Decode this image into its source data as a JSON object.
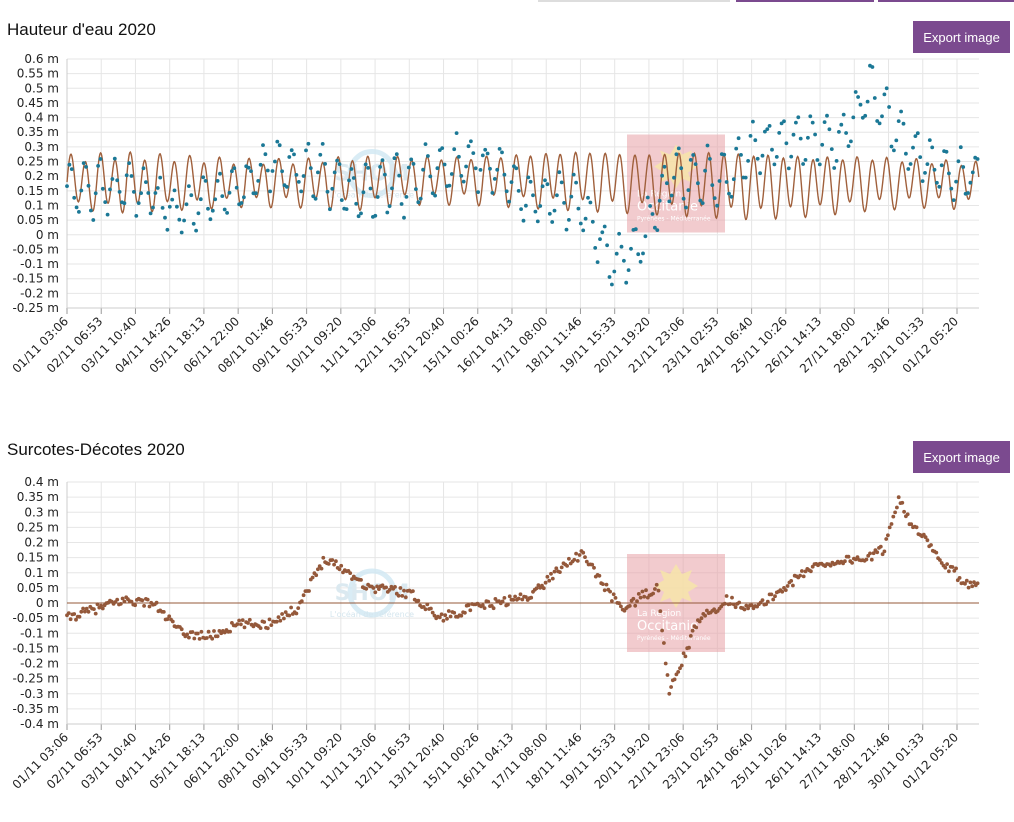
{
  "colors": {
    "accent": "#7b4a8f",
    "observed": "#1b7896",
    "predicted": "#a0603c",
    "surge": "#94583a",
    "grid": "#e6e6e6",
    "watermark_box": "#e8a0a6"
  },
  "charts": [
    {
      "title": "Hauteur d'eau 2020",
      "export_label": "Export image",
      "unit": "m"
    },
    {
      "title": "Surcotes-Décotes 2020",
      "export_label": "Export image",
      "unit": "m"
    }
  ],
  "watermarks": {
    "shom_text": "SHOM",
    "shom_subtitle": "L'océan de référence",
    "region_line1": "La Région",
    "region_line2": "Occitanie",
    "region_line3": "Pyrénées - Méditerranée"
  },
  "chart_data": [
    {
      "type": "line",
      "title": "Hauteur d'eau 2020",
      "xlabel": "",
      "ylabel": "",
      "ylim": [
        -0.25,
        0.6
      ],
      "yticks": [
        "0.6 m",
        "0.55 m",
        "0.5 m",
        "0.45 m",
        "0.4 m",
        "0.35 m",
        "0.3 m",
        "0.25 m",
        "0.2 m",
        "0.15 m",
        "0.1 m",
        "0.05 m",
        "0 m",
        "-0.05 m",
        "-0.1 m",
        "-0.15 m",
        "-0.2 m",
        "-0.25 m"
      ],
      "ytick_values": [
        0.6,
        0.55,
        0.5,
        0.45,
        0.4,
        0.35,
        0.3,
        0.25,
        0.2,
        0.15,
        0.1,
        0.05,
        0,
        -0.05,
        -0.1,
        -0.15,
        -0.2,
        -0.25
      ],
      "xticks": [
        "01/11 03:06",
        "02/11 06:53",
        "03/11 10:40",
        "04/11 14:26",
        "05/11 18:13",
        "06/11 22:00",
        "08/11 01:46",
        "09/11 05:33",
        "10/11 09:20",
        "11/11 13:06",
        "12/11 16:53",
        "13/11 20:40",
        "15/11 00:26",
        "16/11 04:13",
        "17/11 08:00",
        "18/11 11:46",
        "19/11 15:33",
        "20/11 19:20",
        "21/11 23:06",
        "23/11 02:53",
        "24/11 06:40",
        "25/11 10:26",
        "26/11 14:13",
        "27/11 18:00",
        "28/11 21:46",
        "30/11 01:33",
        "01/12 05:20"
      ],
      "x_days": [
        0,
        2,
        4,
        6,
        8,
        10,
        12,
        14,
        16,
        18,
        20,
        22,
        24,
        26,
        28,
        30,
        31
      ],
      "series": [
        {
          "kind": "predicted-line",
          "mean_by_day": [
            0.18,
            0.18,
            0.18,
            0.18,
            0.18,
            0.18,
            0.19,
            0.19,
            0.19,
            0.19,
            0.18,
            0.18,
            0.17,
            0.17,
            0.18,
            0.18,
            0.17,
            0.17
          ],
          "amp_by_day": [
            0.08,
            0.09,
            0.08,
            0.07,
            0.07,
            0.08,
            0.07,
            0.07,
            0.08,
            0.09,
            0.09,
            0.1,
            0.1,
            0.09,
            0.08,
            0.07,
            0.07,
            0.08
          ],
          "period_hours": 12.42
        },
        {
          "kind": "observed-points",
          "mean_by_day": [
            0.15,
            0.15,
            0.17,
            0.13,
            0.07,
            0.12,
            0.15,
            0.24,
            0.23,
            0.21,
            0.14,
            0.17,
            0.18,
            0.22,
            0.26,
            0.22,
            0.12,
            0.13,
            0.1,
            -0.1,
            -0.03,
            0.2,
            0.19,
            0.2,
            0.29,
            0.32,
            0.33,
            0.32,
            0.49,
            0.33,
            0.25,
            0.2
          ],
          "amp_by_day": [
            0.08,
            0.09,
            0.08,
            0.07,
            0.07,
            0.08,
            0.07,
            0.07,
            0.08,
            0.09,
            0.09,
            0.1,
            0.1,
            0.09,
            0.08,
            0.07,
            0.07,
            0.08,
            0.08,
            0.08,
            0.09,
            0.09,
            0.1,
            0.09,
            0.08,
            0.08,
            0.08,
            0.08,
            0.08,
            0.08,
            0.08,
            0.08
          ]
        }
      ]
    },
    {
      "type": "scatter",
      "title": "Surcotes-Décotes 2020",
      "xlabel": "",
      "ylabel": "",
      "ylim": [
        -0.4,
        0.4
      ],
      "yticks": [
        "0.4 m",
        "0.35 m",
        "0.3 m",
        "0.25 m",
        "0.2 m",
        "0.15 m",
        "0.1 m",
        "0.05 m",
        "0 m",
        "-0.05 m",
        "-0.1 m",
        "-0.15 m",
        "-0.2 m",
        "-0.25 m",
        "-0.3 m",
        "-0.35 m",
        "-0.4 m"
      ],
      "ytick_values": [
        0.4,
        0.35,
        0.3,
        0.25,
        0.2,
        0.15,
        0.1,
        0.05,
        0,
        -0.05,
        -0.1,
        -0.15,
        -0.2,
        -0.25,
        -0.3,
        -0.35,
        -0.4
      ],
      "xticks": [
        "01/11 03:06",
        "02/11 06:53",
        "03/11 10:40",
        "04/11 14:26",
        "05/11 18:13",
        "06/11 22:00",
        "08/11 01:46",
        "09/11 05:33",
        "10/11 09:20",
        "11/11 13:06",
        "12/11 16:53",
        "13/11 20:40",
        "15/11 00:26",
        "16/11 04:13",
        "17/11 08:00",
        "18/11 11:46",
        "19/11 15:33",
        "20/11 19:20",
        "21/11 23:06",
        "23/11 02:53",
        "24/11 06:40",
        "25/11 10:26",
        "26/11 14:13",
        "27/11 18:00",
        "28/11 21:46",
        "30/11 01:33",
        "01/12 05:20"
      ],
      "zero_line": 0,
      "series": [
        {
          "kind": "surge-points",
          "x_days": [
            0,
            1,
            2,
            3,
            3.5,
            4,
            5,
            6,
            7,
            7.3,
            7.6,
            8,
            9,
            10,
            10.5,
            11,
            12,
            13,
            14,
            15,
            16,
            16.5,
            17,
            17.5,
            18,
            19,
            19.5,
            20,
            20.6,
            21,
            22,
            23,
            24,
            25,
            26,
            27,
            28,
            28.5,
            29,
            29.5,
            30,
            30.5,
            31,
            31.2,
            31.5
          ],
          "values": [
            -0.05,
            -0.02,
            0.01,
            0.0,
            -0.05,
            -0.1,
            -0.11,
            -0.07,
            -0.07,
            -0.05,
            -0.04,
            -0.02,
            0.15,
            0.09,
            0.05,
            0.05,
            0.03,
            -0.05,
            -0.02,
            0.0,
            0.02,
            0.05,
            0.1,
            0.14,
            0.16,
            0.02,
            -0.02,
            0.02,
            0.05,
            -0.3,
            -0.06,
            0.01,
            -0.02,
            0.05,
            0.12,
            0.14,
            0.15,
            0.18,
            0.35,
            0.25,
            0.2,
            0.13,
            0.1,
            0.05,
            0.07
          ]
        }
      ]
    }
  ]
}
